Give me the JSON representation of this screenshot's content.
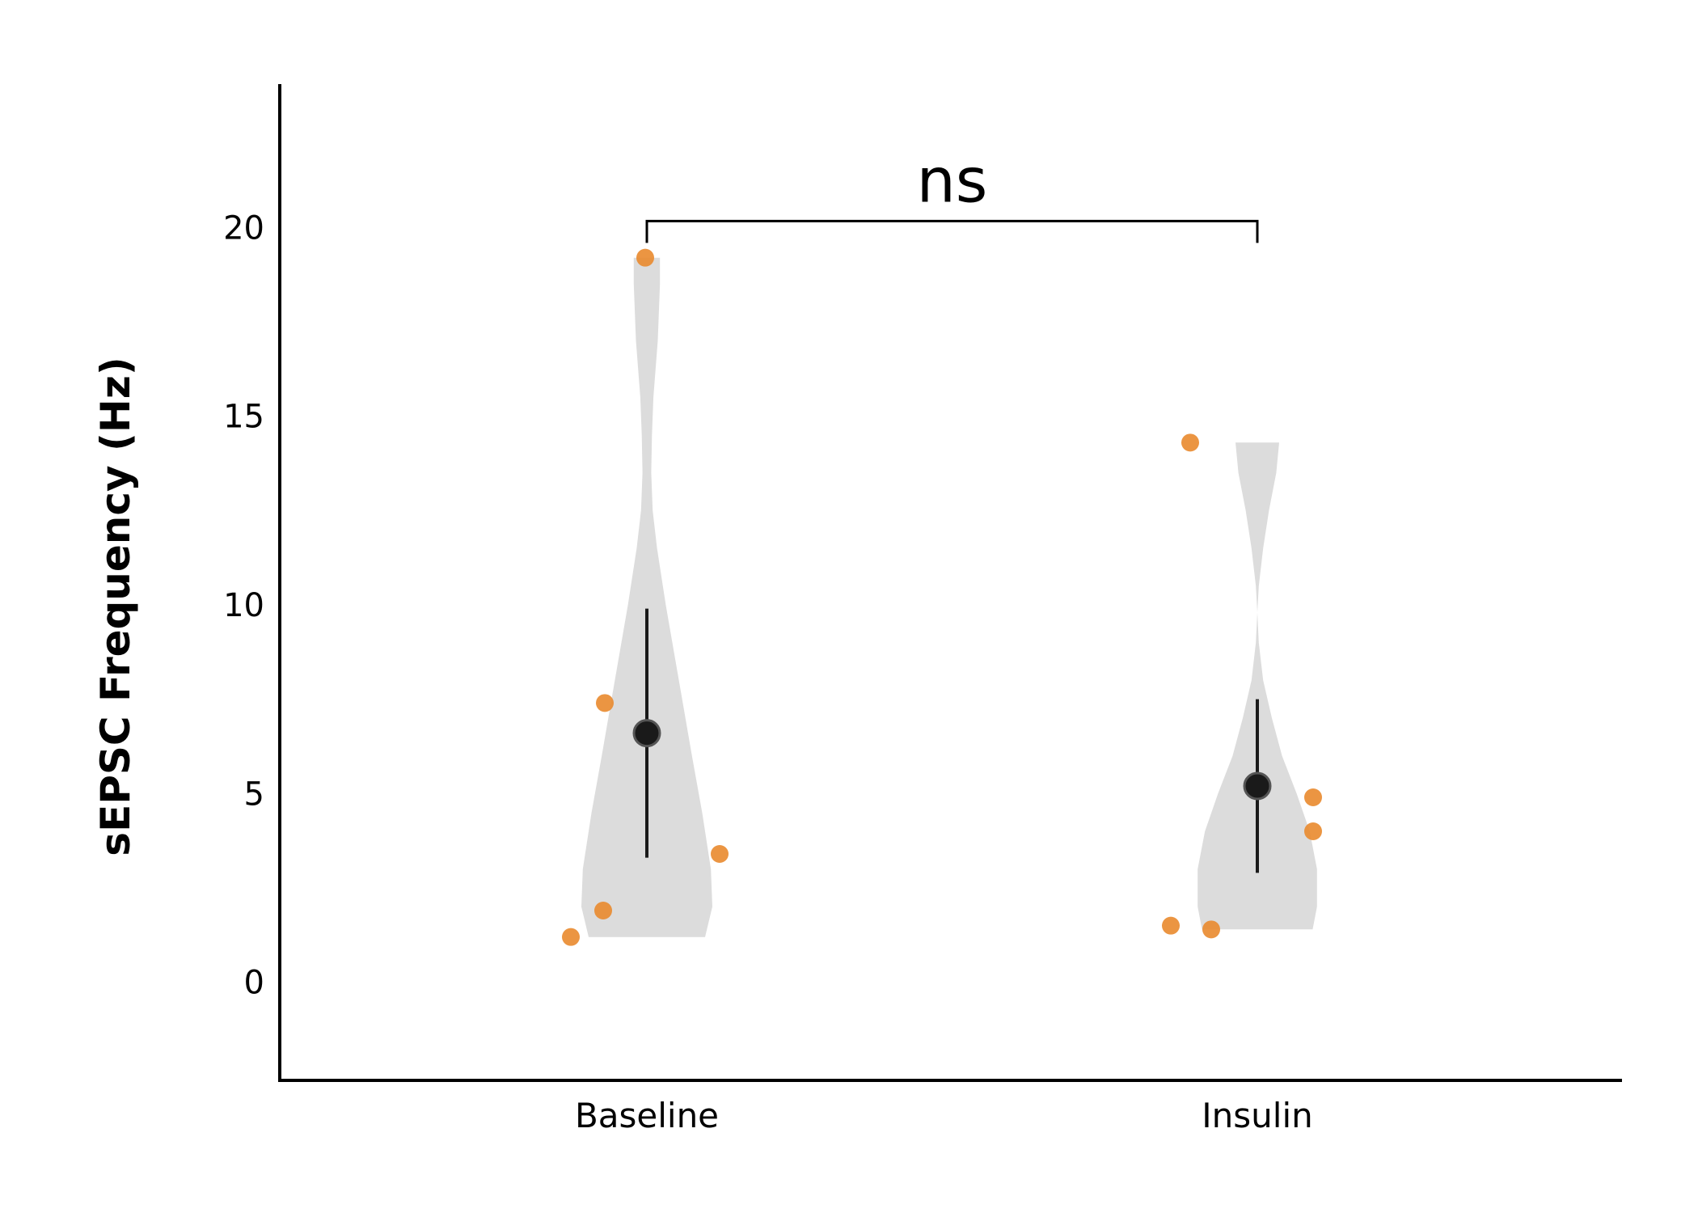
{
  "chart_data": {
    "type": "violin",
    "title": "",
    "xlabel": "",
    "ylabel": "sEPSC Frequency (Hz)",
    "ylim": [
      -2.6,
      23.8
    ],
    "yticks": [
      0,
      5,
      10,
      15,
      20
    ],
    "categories": [
      "Baseline",
      "Insulin"
    ],
    "groups": [
      {
        "name": "Baseline",
        "points": [
          1.2,
          1.9,
          3.4,
          7.4,
          19.2
        ],
        "mean": 6.6,
        "error": [
          3.3,
          9.9
        ],
        "range": [
          1.2,
          19.2
        ],
        "density": [
          [
            1.2,
            0.8
          ],
          [
            2.0,
            0.9
          ],
          [
            3.0,
            0.88
          ],
          [
            4.5,
            0.76
          ],
          [
            6.0,
            0.62
          ],
          [
            8.0,
            0.44
          ],
          [
            10.0,
            0.26
          ],
          [
            11.5,
            0.14
          ],
          [
            12.5,
            0.08
          ],
          [
            13.5,
            0.06
          ],
          [
            14.5,
            0.07
          ],
          [
            15.5,
            0.09
          ],
          [
            17.0,
            0.15
          ],
          [
            18.5,
            0.18
          ],
          [
            19.2,
            0.18
          ]
        ]
      },
      {
        "name": "Insulin",
        "points": [
          1.5,
          1.4,
          4.9,
          4.0,
          14.3
        ],
        "mean": 5.2,
        "error": [
          2.9,
          7.5
        ],
        "range": [
          1.4,
          14.3
        ],
        "density": [
          [
            1.4,
            0.76
          ],
          [
            2.0,
            0.82
          ],
          [
            3.0,
            0.82
          ],
          [
            4.0,
            0.72
          ],
          [
            5.0,
            0.54
          ],
          [
            6.0,
            0.34
          ],
          [
            7.0,
            0.2
          ],
          [
            8.0,
            0.08
          ],
          [
            9.0,
            0.02
          ],
          [
            9.8,
            0.0
          ],
          [
            10.5,
            0.02
          ],
          [
            11.5,
            0.08
          ],
          [
            12.5,
            0.16
          ],
          [
            13.5,
            0.26
          ],
          [
            14.3,
            0.3
          ]
        ]
      }
    ],
    "annotations": [
      {
        "type": "significance-bracket",
        "from": "Baseline",
        "to": "Insulin",
        "y": 20.0,
        "label": "ns"
      }
    ],
    "grid": false,
    "legend": "none",
    "colors": {
      "violin": "#dcdcdc",
      "point": "#e98a2e",
      "mean": "#1a1a1a",
      "axis": "#000000"
    }
  }
}
